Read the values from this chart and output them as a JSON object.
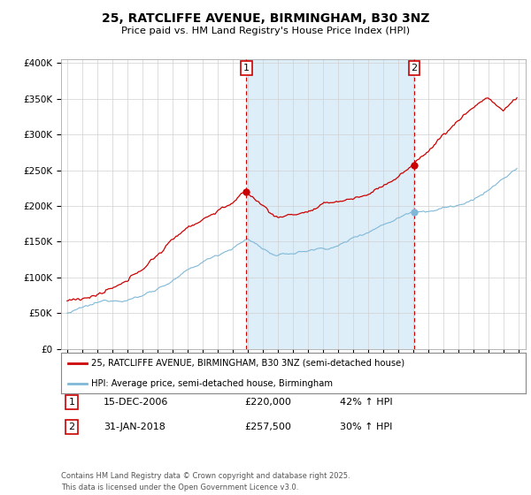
{
  "title": "25, RATCLIFFE AVENUE, BIRMINGHAM, B30 3NZ",
  "subtitle": "Price paid vs. HM Land Registry's House Price Index (HPI)",
  "red_label": "25, RATCLIFFE AVENUE, BIRMINGHAM, B30 3NZ (semi-detached house)",
  "blue_label": "HPI: Average price, semi-detached house, Birmingham",
  "sale1_date": "15-DEC-2006",
  "sale1_price": 220000,
  "sale1_hpi": "42% ↑ HPI",
  "sale2_date": "31-JAN-2018",
  "sale2_price": 257500,
  "sale2_hpi": "30% ↑ HPI",
  "footnote": "Contains HM Land Registry data © Crown copyright and database right 2025.\nThis data is licensed under the Open Government Licence v3.0.",
  "red_color": "#cc0000",
  "blue_color": "#7fb8d8",
  "vline_color": "#cc0000",
  "grid_color": "#d0d0d0",
  "bg_color": "#ffffff",
  "shade_color": "#ddeef8",
  "start_year": 1995,
  "end_year": 2025,
  "sale1_year": 2006.917,
  "sale2_year": 2018.083
}
